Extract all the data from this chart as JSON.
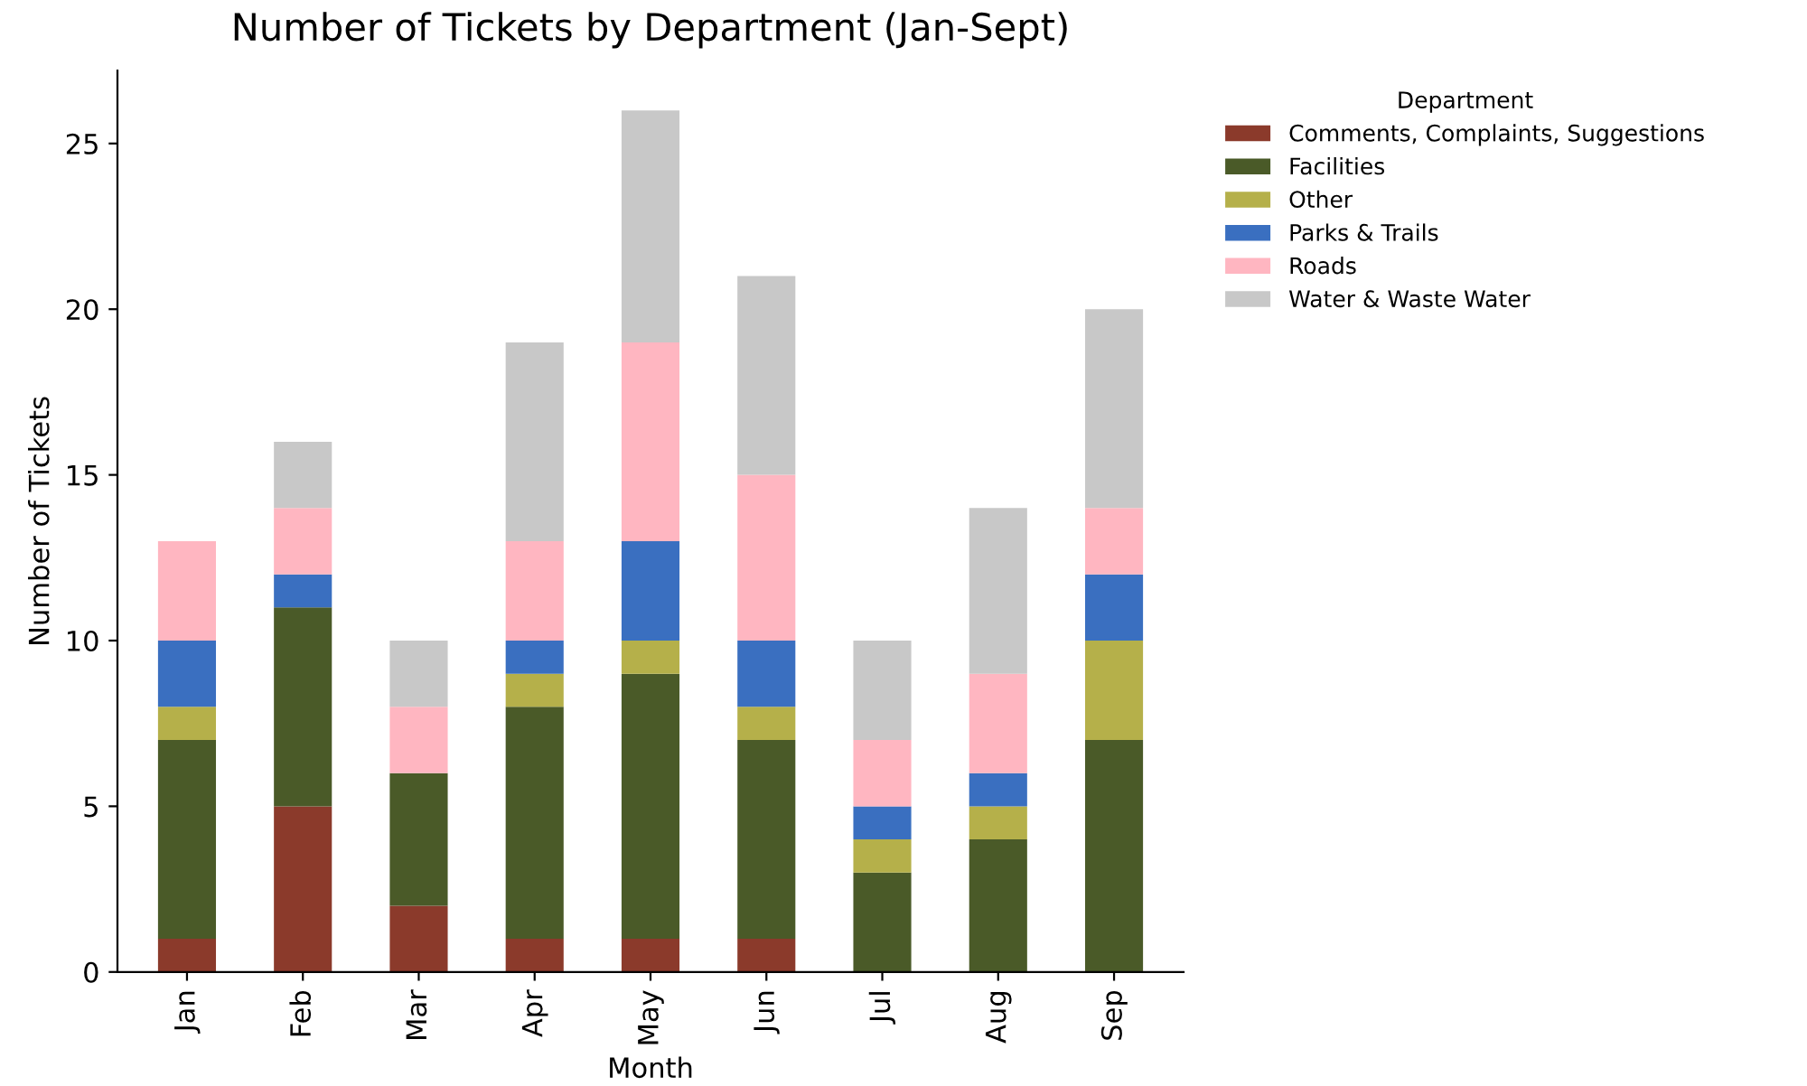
{
  "chart_data": {
    "type": "bar",
    "title": "Number of Tickets by Department (Jan-Sept)",
    "xlabel": "Month",
    "ylabel": "Number of Tickets",
    "legend_title": "Department",
    "categories": [
      "Jan",
      "Feb",
      "Mar",
      "Apr",
      "May",
      "Jun",
      "Jul",
      "Aug",
      "Sep"
    ],
    "series": [
      {
        "name": "Comments, Complaints, Suggestions",
        "color": "#8b3a2b",
        "values": [
          1,
          5,
          2,
          1,
          1,
          1,
          0,
          0,
          0
        ]
      },
      {
        "name": "Facilities",
        "color": "#4a5a28",
        "values": [
          6,
          6,
          4,
          7,
          8,
          6,
          3,
          4,
          7
        ]
      },
      {
        "name": "Other",
        "color": "#b5b04a",
        "values": [
          1,
          0,
          0,
          1,
          1,
          1,
          1,
          1,
          3
        ]
      },
      {
        "name": "Parks & Trails",
        "color": "#3a6fc0",
        "values": [
          2,
          1,
          0,
          1,
          3,
          2,
          1,
          1,
          2
        ]
      },
      {
        "name": "Roads",
        "color": "#ffb6c1",
        "values": [
          3,
          2,
          2,
          3,
          6,
          5,
          2,
          3,
          2
        ]
      },
      {
        "name": "Water & Waste Water",
        "color": "#c8c8c8",
        "values": [
          0,
          2,
          2,
          6,
          7,
          6,
          3,
          5,
          6
        ]
      }
    ],
    "stacked": true,
    "ylim": [
      0,
      27.2
    ],
    "yticks": [
      0,
      5,
      10,
      15,
      20,
      25
    ],
    "grid": false,
    "legend": "top right"
  }
}
